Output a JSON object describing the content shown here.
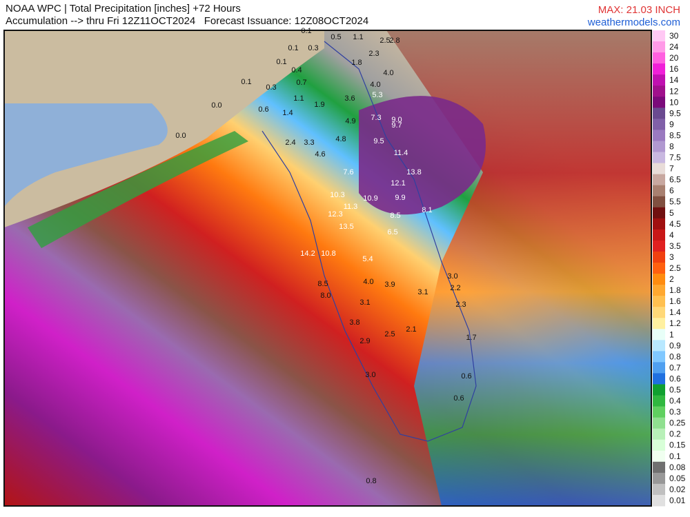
{
  "header": {
    "line1": "NOAA WPC | Total Precipitation [inches] +72 Hours",
    "line2": "Accumulation --> thru Fri 12Z11OCT2024   Forecast Issuance: 12Z08OCT2024",
    "max": "MAX: 21.03 INCH",
    "site": "weathermodels.com"
  },
  "legend": {
    "labels": [
      30,
      24,
      20,
      16,
      14,
      12,
      10,
      9.5,
      9,
      8.5,
      8,
      7.5,
      7,
      6.5,
      6,
      5.5,
      5,
      4.5,
      4,
      3.5,
      3,
      2.5,
      2,
      1.8,
      1.6,
      1.4,
      1.2,
      1,
      0.9,
      0.8,
      0.7,
      0.6,
      0.5,
      0.4,
      0.3,
      0.25,
      0.2,
      0.15,
      0.1,
      0.08,
      0.05,
      0.02,
      0.01
    ]
  },
  "stations": [
    "0.1",
    "0.5",
    "1.1",
    "2.5",
    "2.8",
    "0.1",
    "0.3",
    "2.3",
    "0.1",
    "1.8",
    "0.4",
    "4.0",
    "0.1",
    "0.7",
    "4.0",
    "0.3",
    "5.3",
    "1.1",
    "3.6",
    "1.9",
    "0.0",
    "0.6",
    "1.4",
    "7.3",
    "9.0",
    "4.9",
    "9.7",
    "0.0",
    "4.8",
    "2.4",
    "3.3",
    "9.5",
    "11.4",
    "4.6",
    "7.6",
    "13.8",
    "12.1",
    "10.3",
    "10.9",
    "9.9",
    "8.1",
    "11.3",
    "12.3",
    "8.5",
    "13.5",
    "6.5",
    "14.2",
    "10.8",
    "5.4",
    "3.0",
    "4.0",
    "3.9",
    "8.5",
    "2.2",
    "3.1",
    "8.0",
    "2.3",
    "3.1",
    "3.8",
    "2.1",
    "2.5",
    "1.7",
    "2.9",
    "3.0",
    "0.6",
    "0.6",
    "0.8"
  ]
}
